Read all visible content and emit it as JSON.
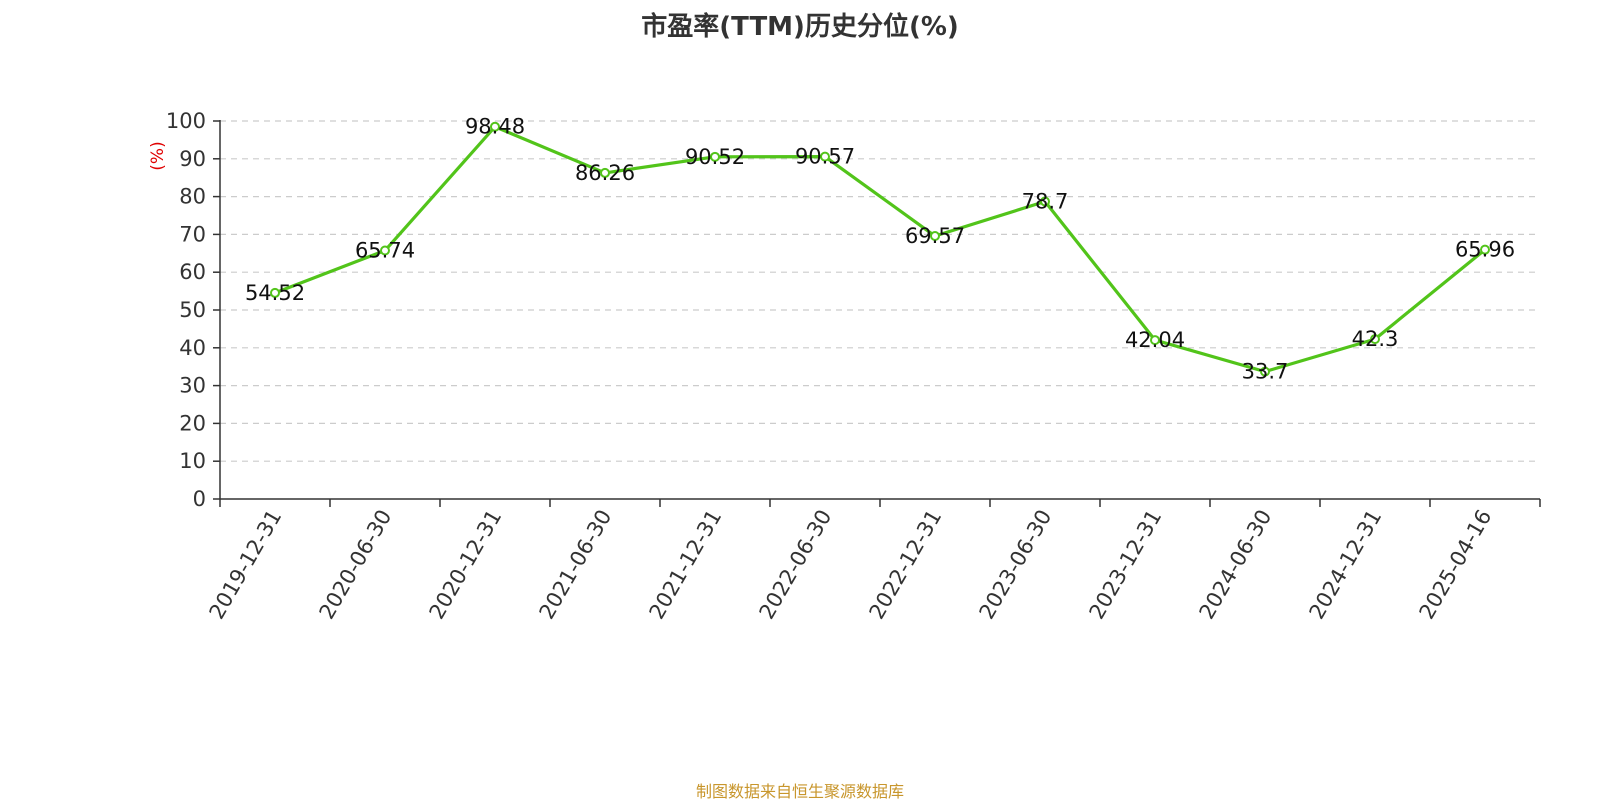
{
  "title": "市盈率(TTM)历史分位(%)",
  "source_note": "制图数据来自恒生聚源数据库",
  "colors": {
    "line": "#52c41a",
    "axis_unit": "#e00000",
    "grid": "#cccccc",
    "axis": "#333333",
    "source": "#c8962c"
  },
  "chart_data": {
    "type": "line",
    "title": "市盈率(TTM)历史分位(%)",
    "xlabel": "",
    "ylabel": "(%)",
    "ylim": [
      0,
      100
    ],
    "yticks": [
      0,
      10,
      20,
      30,
      40,
      50,
      60,
      70,
      80,
      90,
      100
    ],
    "grid": true,
    "legend": "none",
    "categories": [
      "2019-12-31",
      "2020-06-30",
      "2020-12-31",
      "2021-06-30",
      "2021-12-31",
      "2022-06-30",
      "2022-12-31",
      "2023-06-30",
      "2023-12-31",
      "2024-06-30",
      "2024-12-31",
      "2025-04-16"
    ],
    "values": [
      54.52,
      65.74,
      98.48,
      86.26,
      90.52,
      90.57,
      69.57,
      78.7,
      42.04,
      33.7,
      42.3,
      65.96
    ],
    "value_labels": [
      "54.52",
      "65.74",
      "98.48",
      "86.26",
      "90.52",
      "90.57",
      "69.57",
      "78.7",
      "42.04",
      "33.7",
      "42.3",
      "65.96"
    ]
  }
}
